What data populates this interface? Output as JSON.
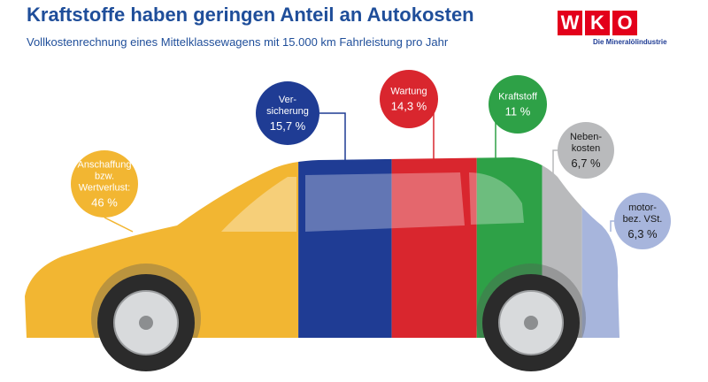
{
  "chart_data": {
    "type": "car",
    "title": "Kraftstoffe haben geringen Anteil an Autokosten",
    "subtitle": "Vollkostenrechnung eines Mittelklassewagens mit 15.000 km Fahrleistung pro Jahr",
    "categories": [
      "Anschaffung bzw. Wertverlust:",
      "Ver-sicherung",
      "Wartung",
      "Kraftstoff",
      "Neben-kosten",
      "motor-bez. VSt."
    ],
    "values": [
      46,
      15.7,
      14.3,
      11,
      6.7,
      6.3
    ],
    "value_labels": [
      "46 %",
      "15,7 %",
      "14,3 %",
      "11 %",
      "6,7 %",
      "6,3 %"
    ],
    "colors": [
      "#f2b632",
      "#1f3c94",
      "#d9262e",
      "#2ea147",
      "#b9babc",
      "#a7b5dc"
    ]
  },
  "logo": {
    "letters": [
      "W",
      "K",
      "O"
    ],
    "subtitle": "Die Mineralölindustrie"
  }
}
